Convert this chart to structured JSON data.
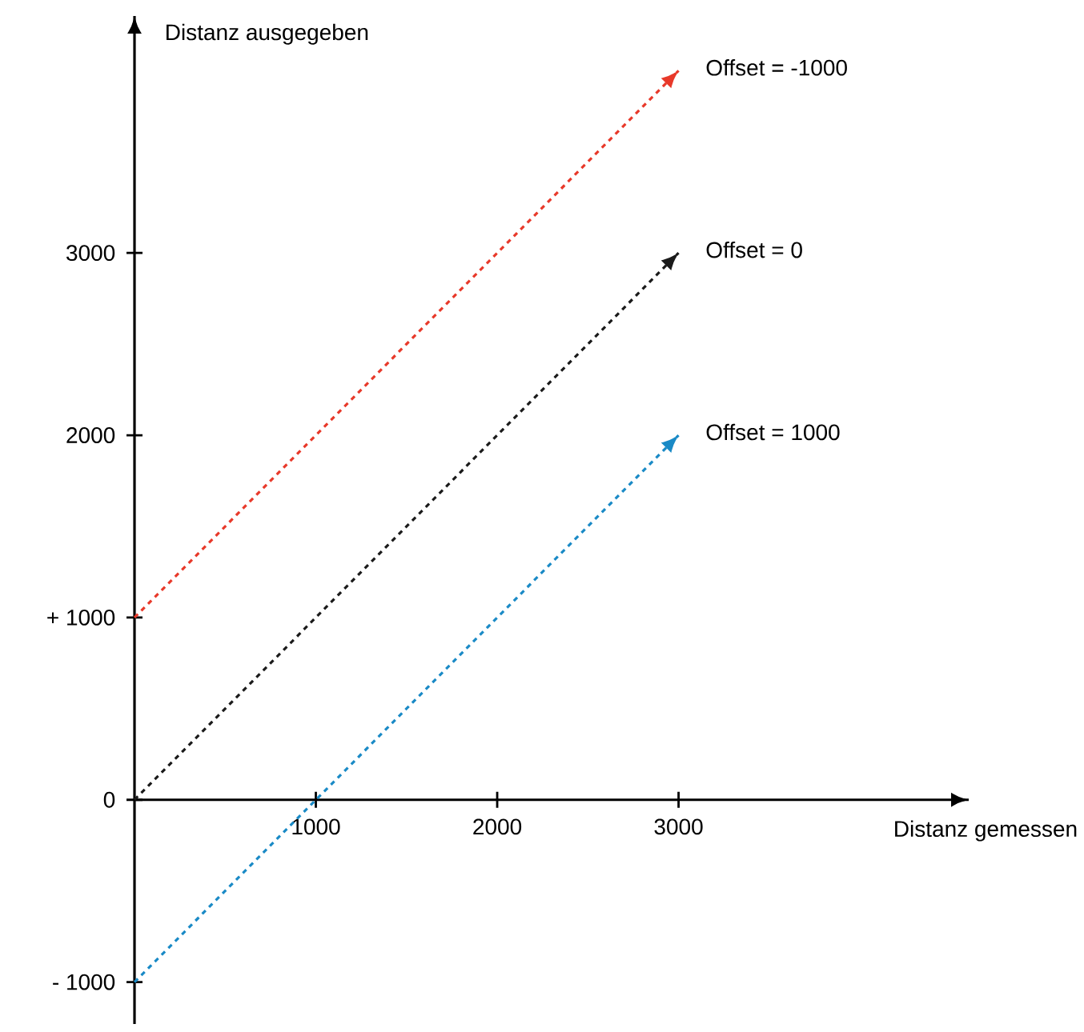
{
  "chart_data": {
    "type": "line",
    "xlabel": "Distanz gemessen",
    "ylabel": "Distanz ausgegeben",
    "xlim": [
      0,
      4600
    ],
    "ylim": [
      -1230,
      4300
    ],
    "xticks": [
      1000,
      2000,
      3000
    ],
    "yticks": [
      {
        "value": -1000,
        "label": "- 1000"
      },
      0,
      {
        "value": 1000,
        "label": "+ 1000"
      },
      2000,
      3000
    ],
    "line_style": "dashed",
    "marker": "none",
    "legend": "right",
    "x": [
      0,
      3000
    ],
    "series": [
      {
        "name": "Offset = -1000",
        "color": "#e8392a",
        "values": [
          1000,
          4000
        ]
      },
      {
        "name": "Offset = 0",
        "color": "#1a1a1a",
        "values": [
          0,
          3000
        ]
      },
      {
        "name": "Offset = 1000",
        "color": "#1a8ac6",
        "values": [
          -1000,
          2000
        ]
      }
    ]
  }
}
